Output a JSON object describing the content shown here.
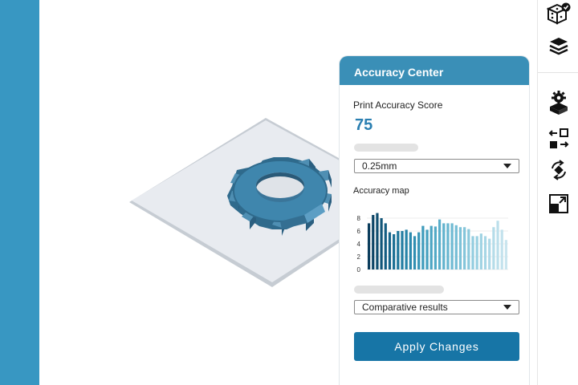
{
  "toolbar": {
    "items": [
      {
        "name": "dice-check-icon"
      },
      {
        "name": "layers-icon"
      },
      {
        "name": "gear-box-icon"
      },
      {
        "name": "swap-icon"
      },
      {
        "name": "rotate-icon"
      },
      {
        "name": "scale-icon"
      }
    ]
  },
  "panel": {
    "title": "Accuracy Center",
    "score_label": "Print Accuracy Score",
    "score_value": "75",
    "layer_select": {
      "value": "0.25mm"
    },
    "map_label": "Accuracy map",
    "compare_select": {
      "value": "Comparative results"
    },
    "apply_label": "Apply Changes"
  },
  "colors": {
    "left_strip": "#3897c2",
    "header": "#3a8fb7",
    "score": "#2a7fb1",
    "button": "#1775a6",
    "gear": "#3a7fa3"
  },
  "chart_data": {
    "type": "bar",
    "title": "Accuracy map",
    "ylim": [
      0,
      10
    ],
    "yticks": [
      "0",
      "2",
      "4",
      "6",
      "8"
    ],
    "values": [
      7.2,
      8.5,
      8.8,
      8.0,
      7.2,
      5.8,
      5.5,
      6.0,
      6.0,
      6.2,
      5.8,
      5.2,
      5.8,
      6.8,
      6.2,
      6.8,
      6.7,
      7.8,
      7.2,
      7.2,
      7.2,
      6.9,
      6.6,
      6.6,
      6.3,
      5.2,
      5.2,
      5.6,
      5.2,
      4.8,
      6.6,
      7.6,
      6.2,
      4.6
    ],
    "colors": [
      "#0b3d5c",
      "#0d4566",
      "#104e70",
      "#125679",
      "#145d82",
      "#17658a",
      "#1a6e93",
      "#1d759a",
      "#217ca1",
      "#2683a7",
      "#2b89ad",
      "#318fb2",
      "#3795b7",
      "#3e9bbb",
      "#45a0bf",
      "#4ca5c3",
      "#53aac6",
      "#5aaeca",
      "#61b2cd",
      "#68b6d0",
      "#6fbad3",
      "#76bed5",
      "#7dc2d8",
      "#84c5da",
      "#8bc9dc",
      "#92ccdf",
      "#99d0e1",
      "#a0d3e3",
      "#a7d6e5",
      "#aed9e7",
      "#b5dce9",
      "#bcdfeb",
      "#c3e2ed",
      "#cae5ee"
    ]
  }
}
